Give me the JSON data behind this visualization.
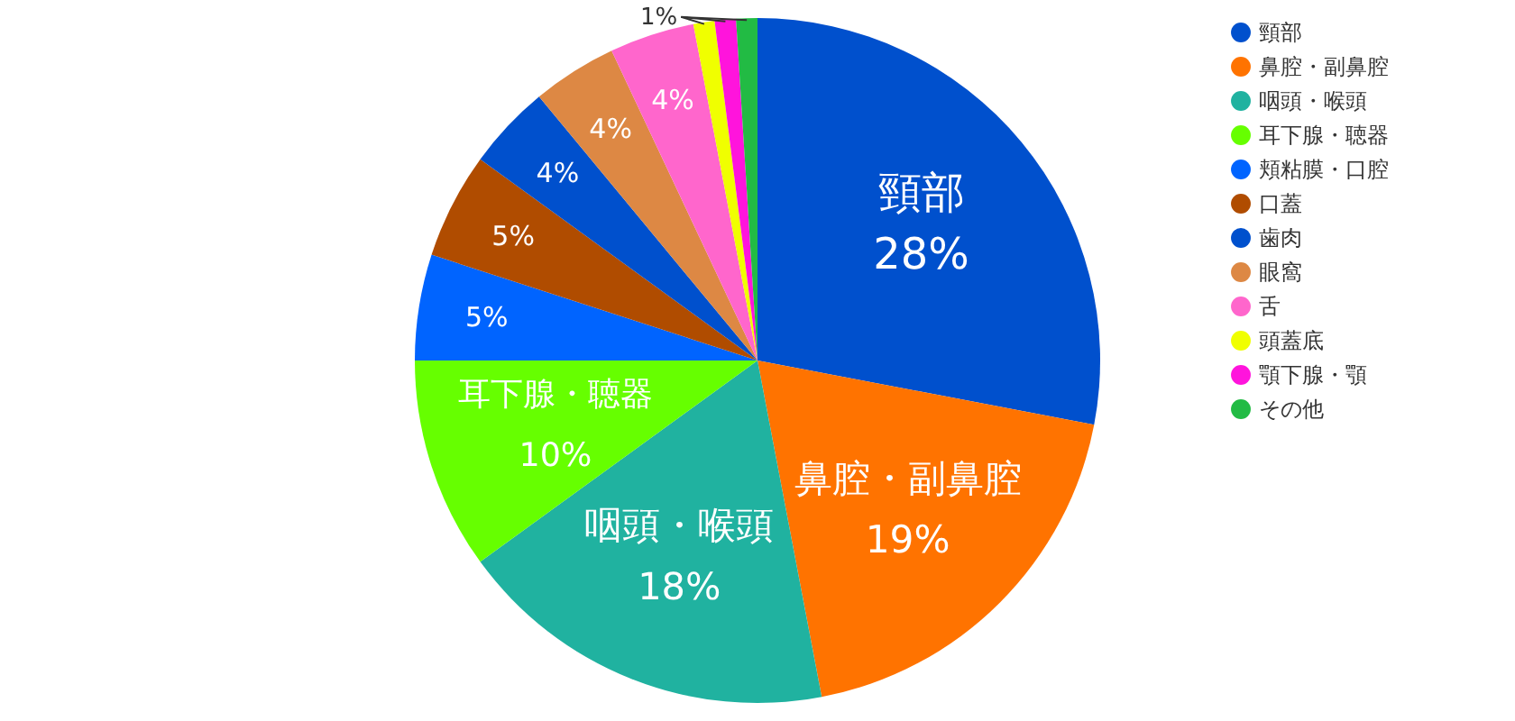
{
  "chart_data": {
    "type": "pie",
    "categories": [
      "頸部",
      "鼻腔・副鼻腔",
      "咽頭・喉頭",
      "耳下腺・聴器",
      "頬粘膜・口腔",
      "口蓋",
      "歯肉",
      "眼窩",
      "舌",
      "頭蓋底",
      "顎下腺・顎",
      "その他"
    ],
    "values": [
      28,
      19,
      18,
      10,
      5,
      5,
      4,
      4,
      4,
      1,
      1,
      1
    ],
    "colors": [
      "#0050cd",
      "#ff7300",
      "#20b2a0",
      "#66ff00",
      "#0064ff",
      "#b04c00",
      "#0050cd",
      "#dd8844",
      "#ff66cc",
      "#f0ff00",
      "#ff14dc",
      "#22bb44"
    ],
    "value_labels": [
      "頸部\n28%",
      "鼻腔・副鼻腔\n19%",
      "咽頭・喉頭\n18%",
      "耳下腺・聴器\n10%",
      "5%",
      "5%",
      "4%",
      "4%",
      "4%",
      "1%",
      null,
      null
    ],
    "legend": "top right"
  }
}
